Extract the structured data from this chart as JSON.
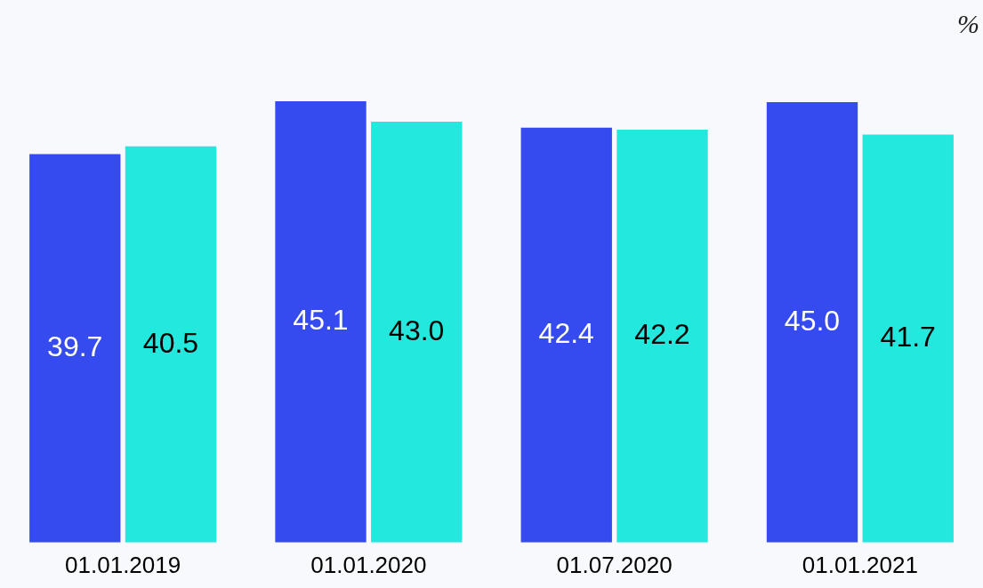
{
  "chart_data": {
    "type": "bar",
    "ylabel": "%",
    "categories": [
      "01.01.2019",
      "01.01.2020",
      "01.07.2020",
      "01.01.2021"
    ],
    "series": [
      {
        "color": "#354bf0",
        "values": [
          39.7,
          45.1,
          42.4,
          45.0
        ],
        "value_labels": [
          "39.7",
          "45.1",
          "42.4",
          "45.0"
        ]
      },
      {
        "color": "#22e8dd",
        "values": [
          40.5,
          43.0,
          42.2,
          41.7
        ],
        "value_labels": [
          "40.5",
          "43.0",
          "42.2",
          "41.7"
        ]
      }
    ],
    "grid": false,
    "legend": false
  }
}
